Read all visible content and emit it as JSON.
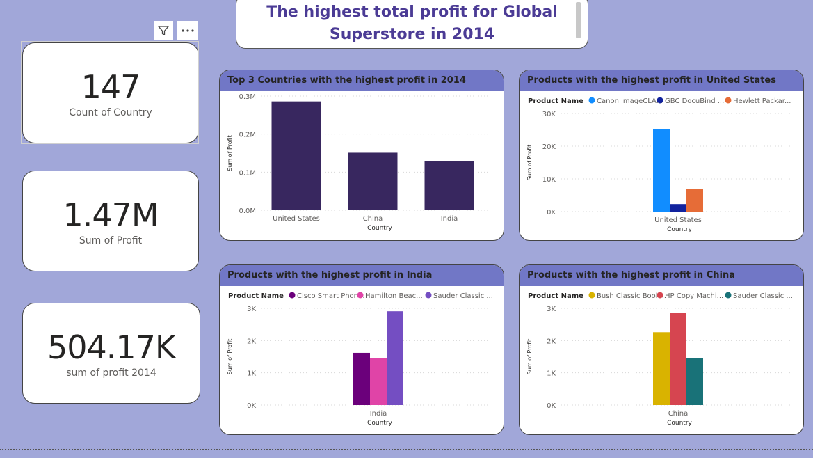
{
  "page_title": "The highest total profit for Global Superstore in 2014",
  "header_icons": {
    "filter": "filter-icon",
    "more": "more-options-icon"
  },
  "kpis": [
    {
      "value": "147",
      "label": "Count of Country"
    },
    {
      "value": "1.47M",
      "label": "Sum of Profit"
    },
    {
      "value": "504.17K",
      "label": "sum of profit 2014"
    }
  ],
  "chart_data": [
    {
      "type": "bar",
      "title": "Top 3 Countries with the highest profit in 2014",
      "xlabel": "Country",
      "ylabel": "Sum of Profit",
      "categories": [
        "United States",
        "China",
        "India"
      ],
      "values": [
        286000,
        151000,
        129000
      ],
      "ylim": [
        0,
        300000
      ],
      "yticks": [
        0,
        100000,
        200000,
        300000
      ],
      "ytick_labels": [
        "0.0M",
        "0.1M",
        "0.2M",
        "0.3M"
      ],
      "color": "#38275f",
      "grid": true
    },
    {
      "type": "bar",
      "title": "Products with the highest profit in United States",
      "legend_title": "Product Name",
      "xlabel": "Country",
      "ylabel": "Sum of Profit",
      "categories": [
        "United States"
      ],
      "series": [
        {
          "name": "Canon imageCLA...",
          "values": [
            25200
          ],
          "color": "#118dff"
        },
        {
          "name": "GBC DocuBind ...",
          "values": [
            2300
          ],
          "color": "#12239e"
        },
        {
          "name": "Hewlett Packar...",
          "values": [
            7000
          ],
          "color": "#e66c37"
        }
      ],
      "ylim": [
        0,
        30000
      ],
      "yticks": [
        0,
        10000,
        20000,
        30000
      ],
      "ytick_labels": [
        "0K",
        "10K",
        "20K",
        "30K"
      ],
      "legend_position": "top-left",
      "grid": true
    },
    {
      "type": "bar",
      "title": "Products with the highest profit in India",
      "legend_title": "Product Name",
      "xlabel": "Country",
      "ylabel": "Sum of Profit",
      "categories": [
        "India"
      ],
      "series": [
        {
          "name": "Cisco Smart Phon...",
          "values": [
            1620
          ],
          "color": "#6b007b"
        },
        {
          "name": "Hamilton Beac...",
          "values": [
            1450
          ],
          "color": "#e044a7"
        },
        {
          "name": "Sauder Classic ...",
          "values": [
            2910
          ],
          "color": "#744ec2"
        }
      ],
      "ylim": [
        0,
        3000
      ],
      "yticks": [
        0,
        1000,
        2000,
        3000
      ],
      "ytick_labels": [
        "0K",
        "1K",
        "2K",
        "3K"
      ],
      "legend_position": "top-left",
      "grid": true
    },
    {
      "type": "bar",
      "title": "Products with the highest profit in China",
      "legend_title": "Product Name",
      "xlabel": "Country",
      "ylabel": "Sum of Profit",
      "categories": [
        "China"
      ],
      "series": [
        {
          "name": "Bush Classic Book...",
          "values": [
            2260
          ],
          "color": "#d9b300"
        },
        {
          "name": "HP Copy Machi...",
          "values": [
            2860
          ],
          "color": "#d64550"
        },
        {
          "name": "Sauder Classic ...",
          "values": [
            1460
          ],
          "color": "#197278"
        }
      ],
      "ylim": [
        0,
        3000
      ],
      "yticks": [
        0,
        1000,
        2000,
        3000
      ],
      "ytick_labels": [
        "0K",
        "1K",
        "2K",
        "3K"
      ],
      "legend_position": "top-left",
      "grid": true
    }
  ]
}
